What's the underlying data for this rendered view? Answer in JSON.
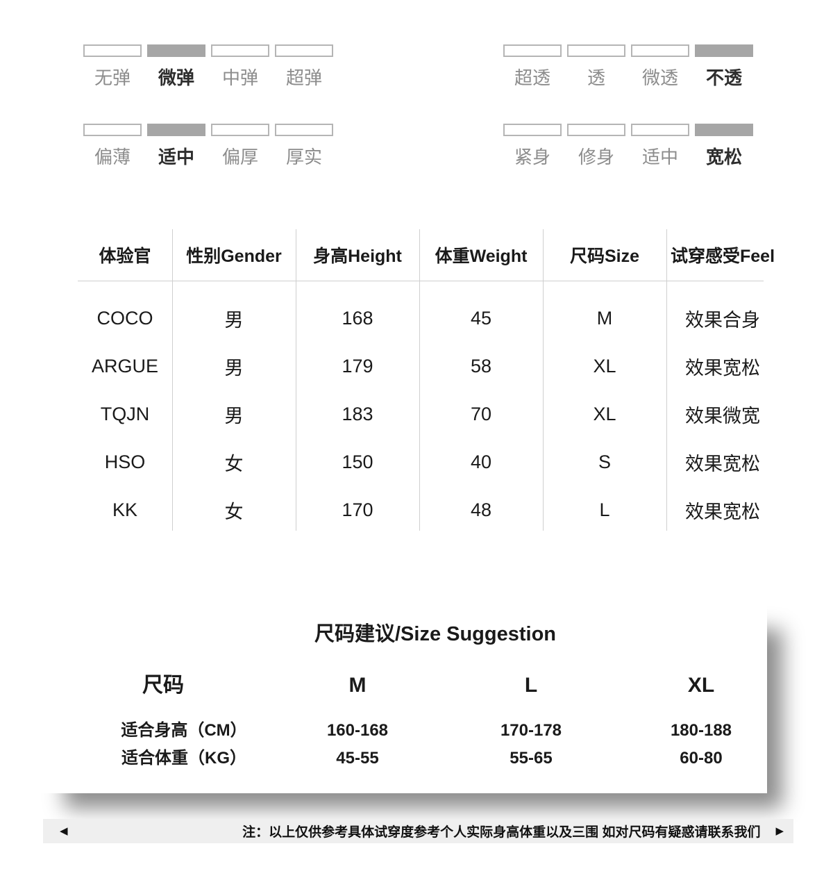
{
  "attributes": {
    "groups": [
      {
        "name": "stretch",
        "options": [
          {
            "label": "无弹",
            "selected": false
          },
          {
            "label": "微弹",
            "selected": true
          },
          {
            "label": "中弹",
            "selected": false
          },
          {
            "label": "超弹",
            "selected": false
          }
        ]
      },
      {
        "name": "transparency",
        "options": [
          {
            "label": "超透",
            "selected": false
          },
          {
            "label": "透",
            "selected": false
          },
          {
            "label": "微透",
            "selected": false
          },
          {
            "label": "不透",
            "selected": true
          }
        ]
      },
      {
        "name": "thickness",
        "options": [
          {
            "label": "偏薄",
            "selected": false
          },
          {
            "label": "适中",
            "selected": true
          },
          {
            "label": "偏厚",
            "selected": false
          },
          {
            "label": "厚实",
            "selected": false
          }
        ]
      },
      {
        "name": "fit",
        "options": [
          {
            "label": "紧身",
            "selected": false
          },
          {
            "label": "修身",
            "selected": false
          },
          {
            "label": "适中",
            "selected": false
          },
          {
            "label": "宽松",
            "selected": true
          }
        ]
      }
    ]
  },
  "fit_table": {
    "headers": [
      "体验官",
      "性别Gender",
      "身高Height",
      "体重Weight",
      "尺码Size",
      "试穿感受Feel"
    ],
    "rows": [
      [
        "COCO",
        "男",
        "168",
        "45",
        "M",
        "效果合身"
      ],
      [
        "ARGUE",
        "男",
        "179",
        "58",
        "XL",
        "效果宽松"
      ],
      [
        "TQJN",
        "男",
        "183",
        "70",
        "XL",
        "效果微宽"
      ],
      [
        "HSO",
        "女",
        "150",
        "40",
        "S",
        "效果宽松"
      ],
      [
        "KK",
        "女",
        "170",
        "48",
        "L",
        "效果宽松"
      ]
    ]
  },
  "size_suggestion": {
    "title": "尺码建议/Size Suggestion",
    "row_header": "尺码",
    "columns": [
      "M",
      "L",
      "XL"
    ],
    "rows": [
      {
        "label": "适合身高（CM）",
        "values": [
          "160-168",
          "170-178",
          "180-188"
        ]
      },
      {
        "label": "适合体重（KG）",
        "values": [
          "45-55",
          "55-65",
          "60-80"
        ]
      }
    ]
  },
  "footer": {
    "left_arrow": "◀",
    "right_arrow": "▶",
    "note": "注：以上仅供参考具体试穿度参考个人实际身高体重以及三围 如对尺码有疑惑请联系我们"
  },
  "colors": {
    "selected_bar": "#a6a6a6",
    "bar_border": "#b5b5b5",
    "unselected_label": "#8c8c8c",
    "selected_label": "#2e2e2e",
    "table_line": "#cfcfcf",
    "text": "#1a1a1a",
    "footer_bg": "#efefef"
  }
}
